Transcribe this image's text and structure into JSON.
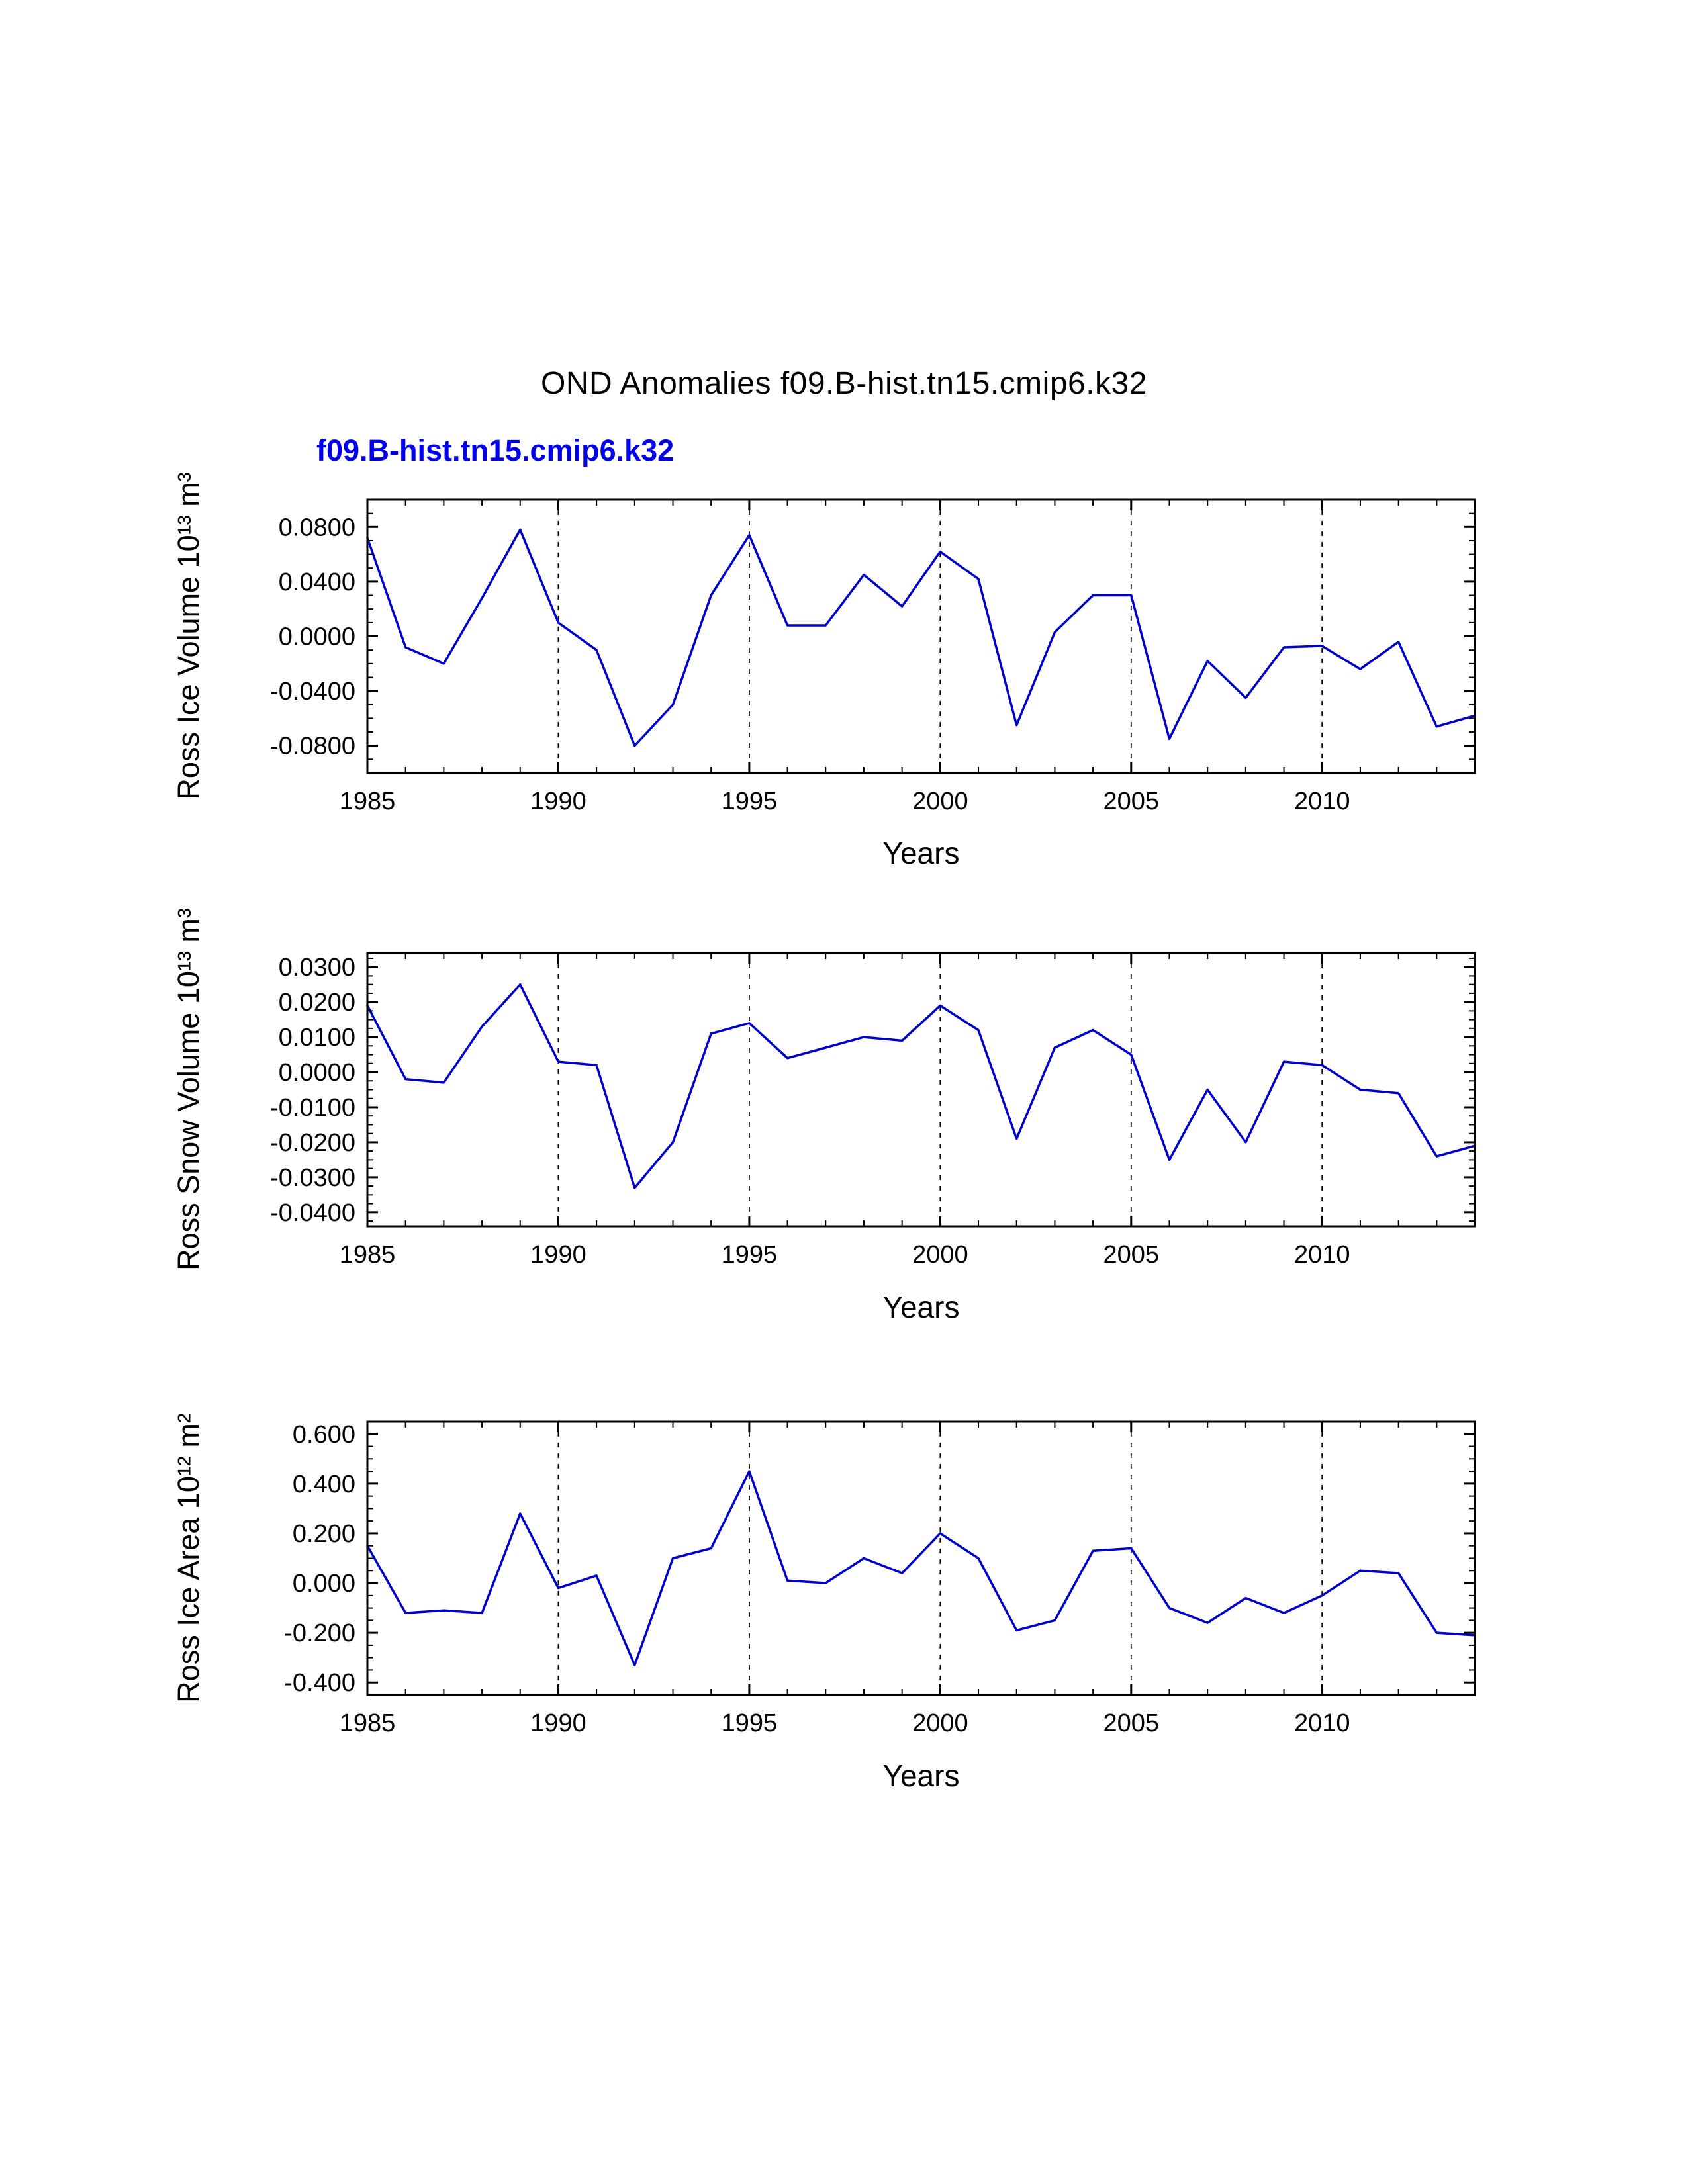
{
  "title": "OND Anomalies f09.B-hist.tn15.cmip6.k32",
  "subtitle": "f09.B-hist.tn15.cmip6.k32",
  "colors": {
    "line": "#0000cc",
    "subtitle": "#0000ee",
    "axis": "#000000"
  },
  "chart_data": [
    {
      "type": "line",
      "name": "ross-ice-volume",
      "ylabel": "Ross Ice Volume 10¹³ m³",
      "xlabel": "Years",
      "x": [
        1985,
        1986,
        1987,
        1988,
        1989,
        1990,
        1991,
        1992,
        1993,
        1994,
        1995,
        1996,
        1997,
        1998,
        1999,
        2000,
        2001,
        2002,
        2003,
        2004,
        2005,
        2006,
        2007,
        2008,
        2009,
        2010,
        2011,
        2012,
        2013,
        2014
      ],
      "values": [
        0.072,
        -0.008,
        -0.02,
        0.028,
        0.078,
        0.01,
        -0.01,
        -0.08,
        -0.05,
        0.03,
        0.074,
        0.008,
        0.008,
        0.045,
        0.022,
        0.062,
        0.042,
        -0.065,
        0.003,
        0.03,
        0.03,
        -0.075,
        -0.018,
        -0.045,
        -0.008,
        -0.007,
        -0.024,
        -0.004,
        -0.066,
        -0.058
      ],
      "xlim": [
        1985,
        2014
      ],
      "ylim": [
        -0.1,
        0.1
      ],
      "xticks": [
        1985,
        1990,
        1995,
        2000,
        2005,
        2010
      ],
      "xtick_labels": [
        "1985",
        "1990",
        "1995",
        "2000",
        "2005",
        "2010"
      ],
      "x_minor_step": 1,
      "yticks": [
        0.08,
        0.04,
        0.0,
        -0.04,
        -0.08
      ],
      "ytick_labels": [
        "0.0800",
        "0.0400",
        "0.0000",
        "-0.0400",
        "-0.0800"
      ],
      "y_minor_step": 0.01,
      "gridlines_x": [
        1990,
        1995,
        2000,
        2005,
        2010
      ],
      "grid": "dashed-vertical",
      "legend": "none"
    },
    {
      "type": "line",
      "name": "ross-snow-volume",
      "ylabel": "Ross Snow Volume 10¹³ m³",
      "xlabel": "Years",
      "x": [
        1985,
        1986,
        1987,
        1988,
        1989,
        1990,
        1991,
        1992,
        1993,
        1994,
        1995,
        1996,
        1997,
        1998,
        1999,
        2000,
        2001,
        2002,
        2003,
        2004,
        2005,
        2006,
        2007,
        2008,
        2009,
        2010,
        2011,
        2012,
        2013,
        2014
      ],
      "values": [
        0.019,
        -0.002,
        -0.003,
        0.013,
        0.025,
        0.003,
        0.002,
        -0.033,
        -0.02,
        0.011,
        0.014,
        0.004,
        0.007,
        0.01,
        0.009,
        0.019,
        0.012,
        -0.019,
        0.007,
        0.012,
        0.005,
        -0.025,
        -0.005,
        -0.02,
        0.003,
        0.002,
        -0.005,
        -0.006,
        -0.024,
        -0.021
      ],
      "xlim": [
        1985,
        2014
      ],
      "ylim": [
        -0.044,
        0.034
      ],
      "xticks": [
        1985,
        1990,
        1995,
        2000,
        2005,
        2010
      ],
      "xtick_labels": [
        "1985",
        "1990",
        "1995",
        "2000",
        "2005",
        "2010"
      ],
      "x_minor_step": 1,
      "yticks": [
        0.03,
        0.02,
        0.01,
        0.0,
        -0.01,
        -0.02,
        -0.03,
        -0.04
      ],
      "ytick_labels": [
        "0.0300",
        "0.0200",
        "0.0100",
        "0.0000",
        "-0.0100",
        "-0.0200",
        "-0.0300",
        "-0.0400"
      ],
      "y_minor_step": 0.0025,
      "gridlines_x": [
        1990,
        1995,
        2000,
        2005,
        2010
      ],
      "grid": "dashed-vertical",
      "legend": "none"
    },
    {
      "type": "line",
      "name": "ross-ice-area",
      "ylabel": "Ross Ice Area 10¹² m²",
      "xlabel": "Years",
      "x": [
        1985,
        1986,
        1987,
        1988,
        1989,
        1990,
        1991,
        1992,
        1993,
        1994,
        1995,
        1996,
        1997,
        1998,
        1999,
        2000,
        2001,
        2002,
        2003,
        2004,
        2005,
        2006,
        2007,
        2008,
        2009,
        2010,
        2011,
        2012,
        2013,
        2014
      ],
      "values": [
        0.15,
        -0.12,
        -0.11,
        -0.12,
        0.28,
        -0.02,
        0.03,
        -0.33,
        0.1,
        0.14,
        0.45,
        0.01,
        0.0,
        0.1,
        0.04,
        0.2,
        0.1,
        -0.19,
        -0.15,
        0.13,
        0.14,
        -0.1,
        -0.16,
        -0.06,
        -0.12,
        -0.05,
        0.05,
        0.04,
        -0.2,
        -0.21
      ],
      "xlim": [
        1985,
        2014
      ],
      "ylim": [
        -0.45,
        0.65
      ],
      "xticks": [
        1985,
        1990,
        1995,
        2000,
        2005,
        2010
      ],
      "xtick_labels": [
        "1985",
        "1990",
        "1995",
        "2000",
        "2005",
        "2010"
      ],
      "x_minor_step": 1,
      "yticks": [
        0.6,
        0.4,
        0.2,
        0.0,
        -0.2,
        -0.4
      ],
      "ytick_labels": [
        "0.600",
        "0.400",
        "0.200",
        "0.000",
        "-0.200",
        "-0.400"
      ],
      "y_minor_step": 0.05,
      "gridlines_x": [
        1990,
        1995,
        2000,
        2005,
        2010
      ],
      "grid": "dashed-vertical",
      "legend": "none"
    }
  ]
}
